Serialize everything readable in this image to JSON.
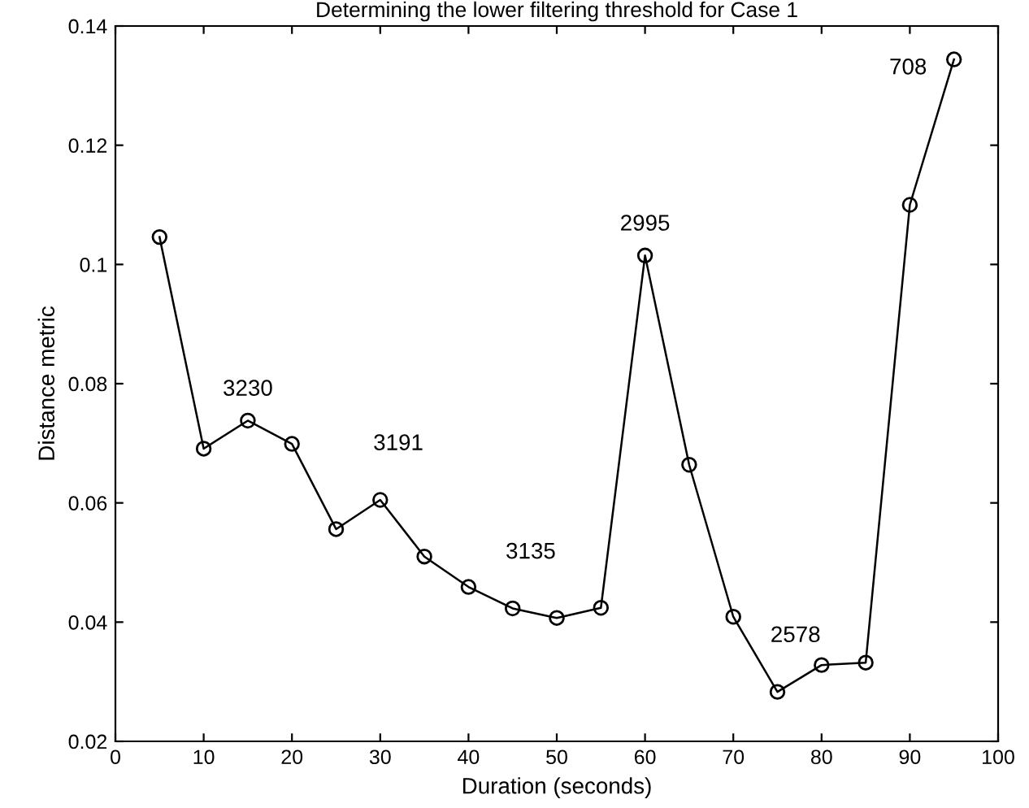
{
  "chart_data": {
    "type": "line",
    "title": "Determining the lower filtering threshold for Case 1",
    "xlabel": "Duration (seconds)",
    "ylabel": "Distance metric",
    "x": [
      5,
      10,
      15,
      20,
      25,
      30,
      35,
      40,
      45,
      50,
      55,
      60,
      65,
      70,
      75,
      80,
      85,
      90,
      95
    ],
    "series": [
      {
        "color": "#000000",
        "values": [
          0.1046,
          0.0691,
          0.0738,
          0.0699,
          0.0556,
          0.0605,
          0.051,
          0.0459,
          0.0423,
          0.0407,
          0.0424,
          0.1015,
          0.0664,
          0.0409,
          0.0283,
          0.0328,
          0.0332,
          0.11,
          0.1344
        ]
      }
    ],
    "marker": "circle",
    "line_style": "solid",
    "grid": false,
    "legend": false,
    "xlim": [
      0,
      100
    ],
    "xticks": [
      0,
      10,
      20,
      30,
      40,
      50,
      60,
      70,
      80,
      90,
      100
    ],
    "ylim": [
      0.02,
      0.14
    ],
    "yticks": [
      0.02,
      0.04,
      0.06,
      0.08,
      0.1,
      0.12,
      0.14
    ],
    "annotations": [
      {
        "text": "3230",
        "x": 15,
        "y": 0.0738
      },
      {
        "text": "3191",
        "x": 30,
        "y": 0.0605
      },
      {
        "text": "3135",
        "x": 45,
        "y": 0.0423
      },
      {
        "text": "2995",
        "x": 60,
        "y": 0.1015
      },
      {
        "text": "2578",
        "x": 75,
        "y": 0.0283
      },
      {
        "text": "708",
        "x": 95,
        "y": 0.1344
      }
    ]
  }
}
